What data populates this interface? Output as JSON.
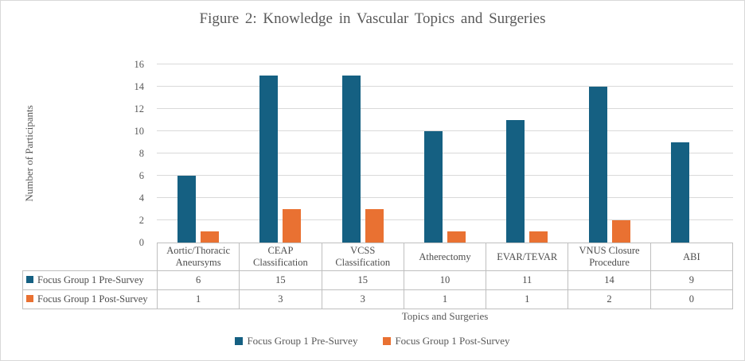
{
  "chart_data": {
    "type": "bar",
    "title": "Figure 2: Knowledge in Vascular Topics and Surgeries",
    "xlabel": "Topics and Surgeries",
    "ylabel": "Number of Participants",
    "ylim": [
      0,
      16
    ],
    "yticks": [
      0,
      2,
      4,
      6,
      8,
      10,
      12,
      14,
      16
    ],
    "grid": true,
    "legend_position": "bottom",
    "has_data_table": true,
    "categories": [
      "Aortic/Thoracic Aneursyms",
      "CEAP Classification",
      "VCSS Classification",
      "Atherectomy",
      "EVAR/TEVAR",
      "VNUS Closure Procedure",
      "ABI"
    ],
    "series": [
      {
        "name": "Focus Group 1 Pre-Survey",
        "color": "#156082",
        "values": [
          6,
          15,
          15,
          10,
          11,
          14,
          9
        ]
      },
      {
        "name": "Focus Group 1 Post-Survey",
        "color": "#E97132",
        "values": [
          1,
          3,
          3,
          1,
          1,
          2,
          0
        ]
      }
    ]
  },
  "styles": {
    "text_color": "#595959",
    "table_text_color": "#4d4d4d",
    "gridline_color": "#d9d9d9",
    "table_border_color": "#bfbfbf",
    "background": "#ffffff"
  }
}
